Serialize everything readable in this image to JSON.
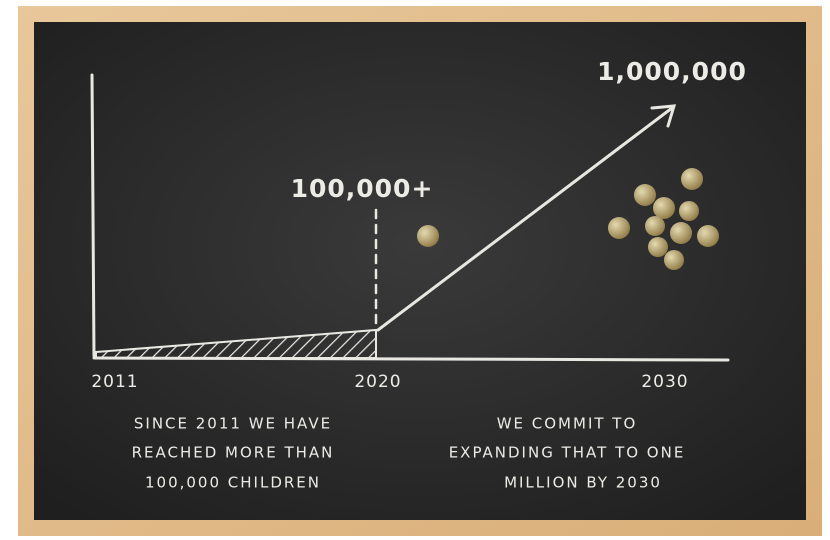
{
  "board": {
    "target_label": "1,000,000",
    "milestone_label": "100,000+",
    "axis_labels": [
      "2011",
      "2020",
      "2030"
    ],
    "captions": [
      {
        "lines": [
          "SINCE 2011 WE HAVE",
          "REACHED MORE THAN",
          "100,000 CHILDREN"
        ]
      },
      {
        "lines": [
          "WE COMMIT TO",
          "EXPANDING THAT TO ONE",
          "MILLION BY 2030"
        ]
      }
    ]
  }
}
